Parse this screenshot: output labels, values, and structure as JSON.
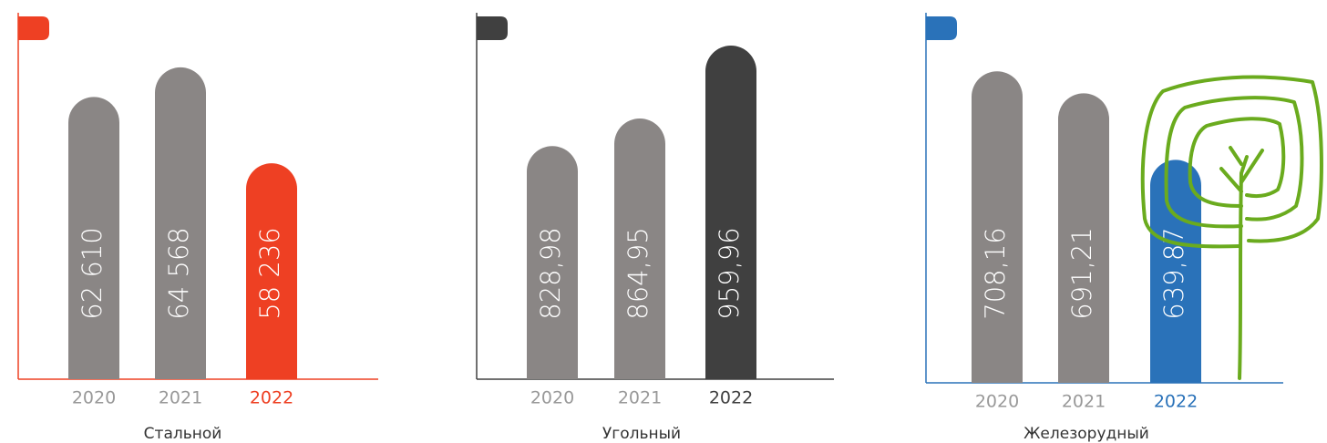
{
  "chart_data": [
    {
      "type": "bar",
      "title": "Стальной",
      "categories": [
        "2020",
        "2021",
        "2022"
      ],
      "values": [
        62610,
        64568,
        58236
      ],
      "value_labels": [
        "62 610",
        "64 568",
        "58 236"
      ],
      "colors": [
        "#8a8685",
        "#8a8685",
        "#ee4023"
      ],
      "accent": "#ee4023",
      "ylim": [
        44000,
        66000
      ]
    },
    {
      "type": "bar",
      "title": "Угольный",
      "categories": [
        "2020",
        "2021",
        "2022"
      ],
      "values": [
        828.98,
        864.95,
        959.96
      ],
      "value_labels": [
        "828,98",
        "864,95",
        "959,96"
      ],
      "colors": [
        "#8a8685",
        "#8a8685",
        "#404040"
      ],
      "accent": "#404040",
      "ylim": [
        525,
        960
      ]
    },
    {
      "type": "bar",
      "title": "Железорудный",
      "categories": [
        "2020",
        "2021",
        "2022"
      ],
      "values": [
        708.16,
        691.21,
        639.87
      ],
      "value_labels": [
        "708,16",
        "691,21",
        "639,87"
      ],
      "colors": [
        "#8a8685",
        "#8a8685",
        "#2a72b9"
      ],
      "accent": "#2a72b9",
      "ylim": [
        468,
        728
      ]
    }
  ]
}
